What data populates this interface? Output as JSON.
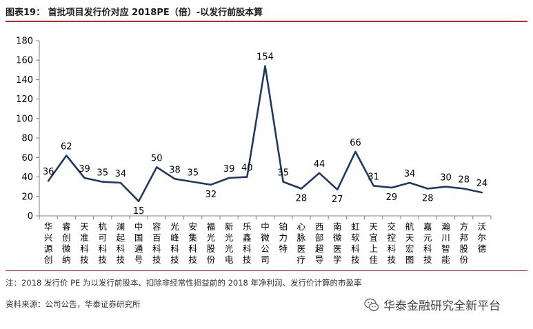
{
  "header": {
    "title": "图表19：  首批项目发行价对应 2018PE（倍）-以发行前股本算"
  },
  "chart_data": {
    "type": "line",
    "categories": [
      "华兴源创",
      "睿创微纳",
      "天准科技",
      "杭可科技",
      "澜起科技",
      "中国通号",
      "容百科技",
      "光峰科技",
      "安集科技",
      "福光股份",
      "新光光电",
      "乐鑫科技",
      "中微公司",
      "铂力特",
      "心脉医疗",
      "西部超导",
      "南微医学",
      "虹软科技",
      "天宜上佳",
      "交控科技",
      "航天宏图",
      "嘉元科技",
      "瀚川智能",
      "方邦股份",
      "沃尔德"
    ],
    "values": [
      36,
      62,
      39,
      35,
      34,
      15,
      50,
      38,
      35,
      32,
      39,
      40,
      154,
      35,
      28,
      44,
      27,
      66,
      31,
      29,
      34,
      28,
      30,
      28,
      24
    ],
    "ylim": [
      0,
      180
    ],
    "yticks": [
      0,
      20,
      40,
      60,
      80,
      100,
      120,
      140,
      160,
      180
    ],
    "grid": false,
    "legend": "none",
    "line_color": "#1f3864"
  },
  "footer": {
    "note": "注：2018 发行价 PE 为以发行前股本、扣除非经常性损益前的 2018 年净利润、发行价计算的市盈率",
    "source": "资料来源：公司公告，华泰证券研究所",
    "watermark": "华泰金融研究全新平台",
    "watermark_icon": "wechat-icon"
  }
}
